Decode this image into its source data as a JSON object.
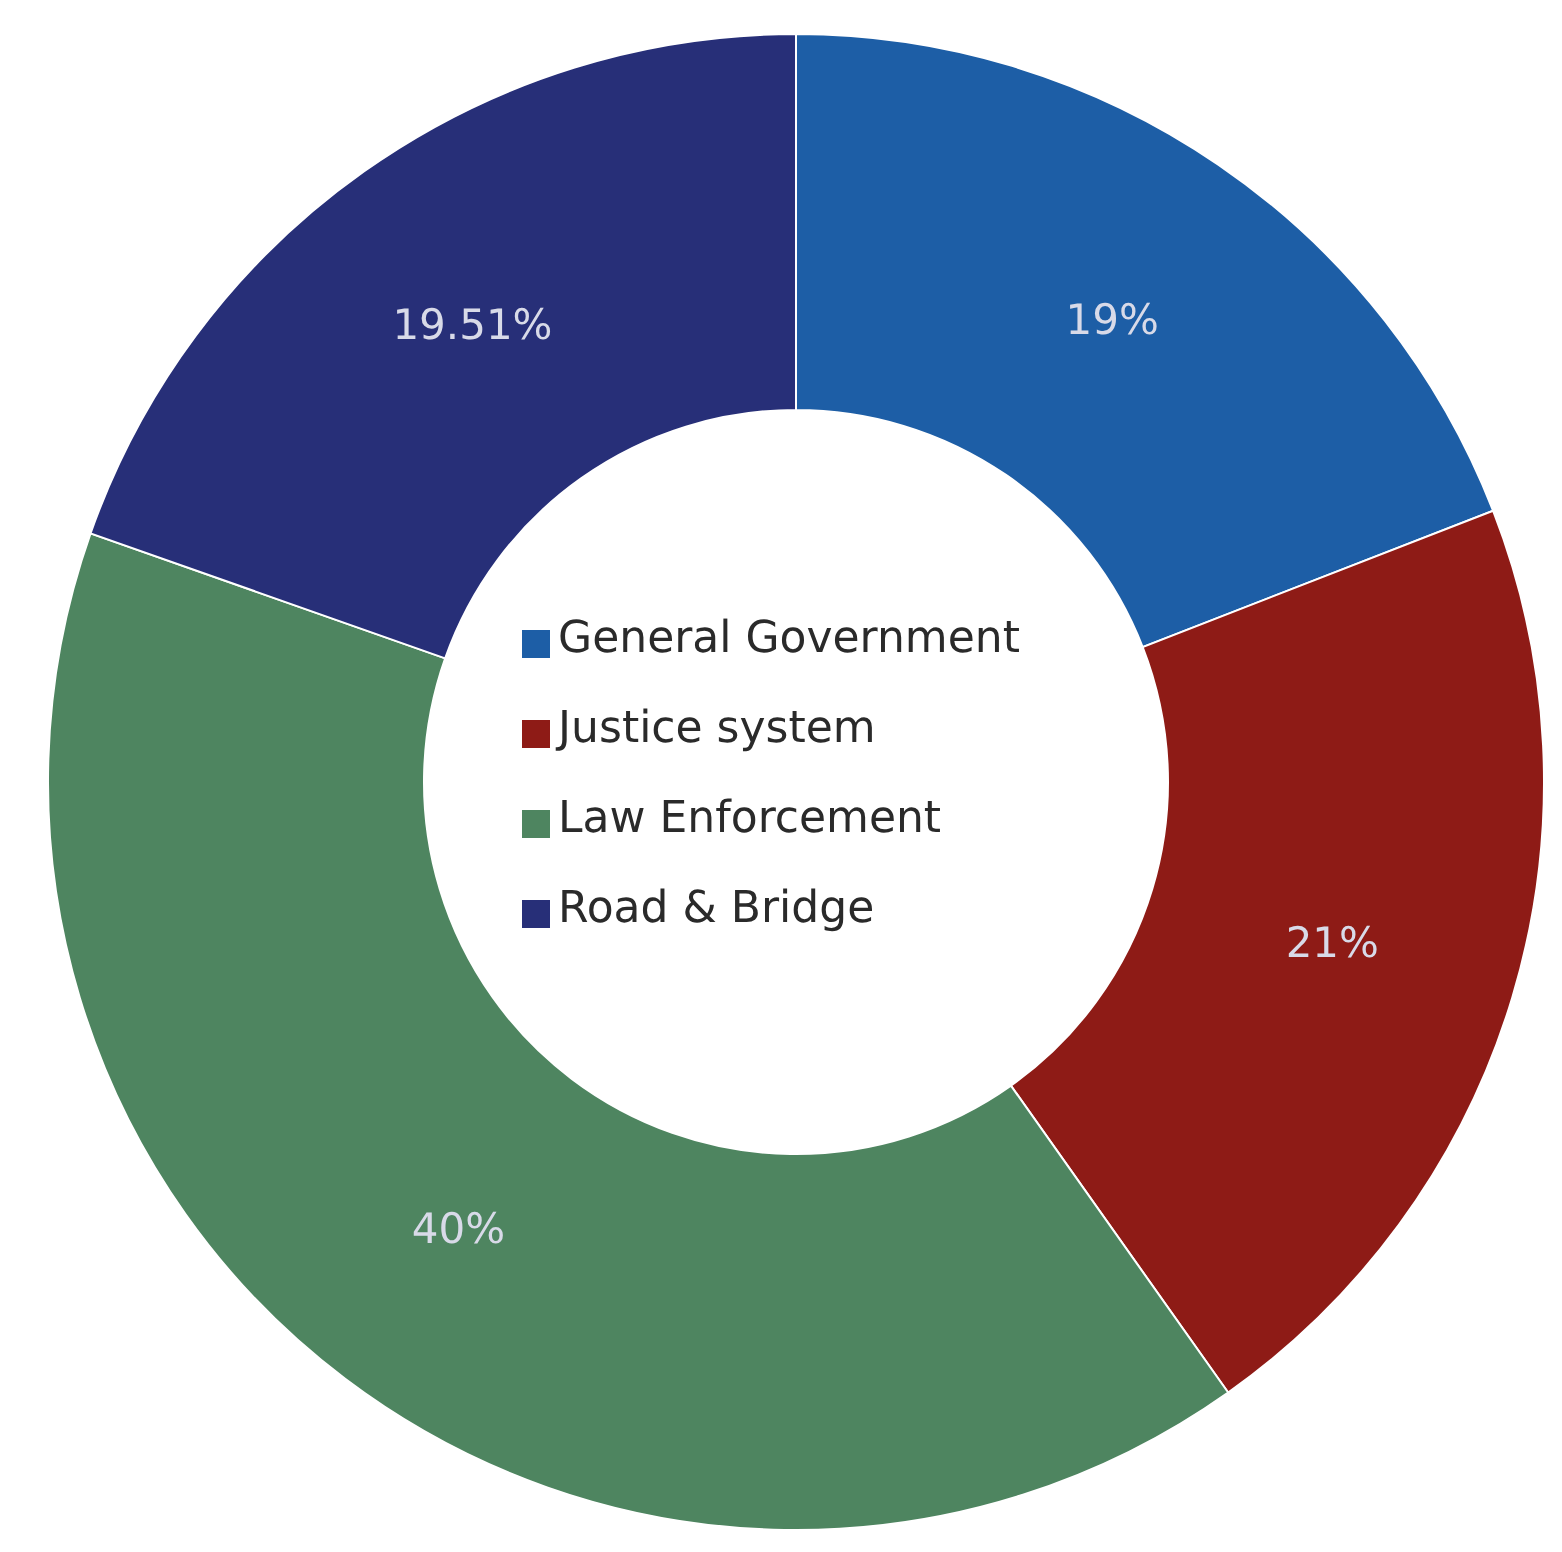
{
  "chart_data": {
    "type": "donut",
    "categories": [
      "General Government",
      "Justice system",
      "Law Enforcement",
      "Road & Bridge"
    ],
    "values": [
      19,
      21,
      40,
      19.51
    ],
    "colors": [
      "#1d5ea6",
      "#8e1b16",
      "#4e8560",
      "#272f78"
    ],
    "value_labels": [
      "19%",
      "21%",
      "40%",
      "19.51%"
    ],
    "legend": "center"
  }
}
